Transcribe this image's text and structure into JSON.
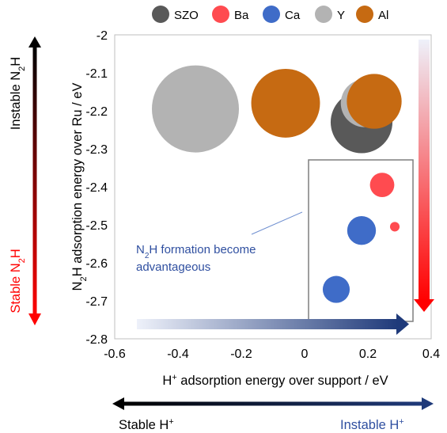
{
  "chart_data": {
    "type": "scatter",
    "xlabel_main": "H",
    "xlabel_sup": "+",
    "xlabel_rest": " adsorption energy over support / eV",
    "ylabel_a": "N",
    "ylabel_sub": "2",
    "ylabel_b": "H adsorption energy over Ru / eV",
    "xlim": [
      -0.6,
      0.4
    ],
    "ylim": [
      -2.8,
      -2.0
    ],
    "xticks": [
      "-0.6",
      "-0.4",
      "-0.2",
      "0",
      "0.2",
      "0.4"
    ],
    "yticks": [
      "-2",
      "-2.1",
      "-2.2",
      "-2.3",
      "-2.4",
      "-2.5",
      "-2.6",
      "-2.7",
      "-2.8"
    ],
    "legend": [
      {
        "name": "SZO",
        "color": "#595959"
      },
      {
        "name": "Ba",
        "color": "#ff4b50"
      },
      {
        "name": "Ca",
        "color": "#3f6cc8"
      },
      {
        "name": "Y",
        "color": "#b3b3b3"
      },
      {
        "name": "Al",
        "color": "#c66a12"
      }
    ],
    "points": [
      {
        "series": "Y",
        "x": -0.345,
        "y": -2.195,
        "size": 1.0
      },
      {
        "series": "Al",
        "x": -0.06,
        "y": -2.18,
        "size": 0.79
      },
      {
        "series": "SZO",
        "x": 0.18,
        "y": -2.23,
        "size": 0.71
      },
      {
        "series": "Y",
        "x": 0.19,
        "y": -2.18,
        "size": 0.55
      },
      {
        "series": "Al",
        "x": 0.22,
        "y": -2.175,
        "size": 0.63
      },
      {
        "series": "Ba",
        "x": 0.245,
        "y": -2.395,
        "size": 0.28
      },
      {
        "series": "Ba",
        "x": 0.285,
        "y": -2.505,
        "size": 0.11
      },
      {
        "series": "Ca",
        "x": 0.18,
        "y": -2.515,
        "size": 0.33
      },
      {
        "series": "Ca",
        "x": 0.1,
        "y": -2.67,
        "size": 0.31
      }
    ],
    "annotation_a": "N",
    "annotation_sub": "2",
    "annotation_b": "H formation become",
    "annotation_line2": "advantageous",
    "left_top_a": "Instable N",
    "left_top_sub": "2",
    "left_top_b": "H",
    "left_bottom_a": "Stable N",
    "left_bottom_sub": "2",
    "left_bottom_b": "H",
    "bottom_left_a": "Stable H",
    "bottom_left_sup": "+",
    "bottom_right_a": "Instable H",
    "bottom_right_sup": "+"
  }
}
